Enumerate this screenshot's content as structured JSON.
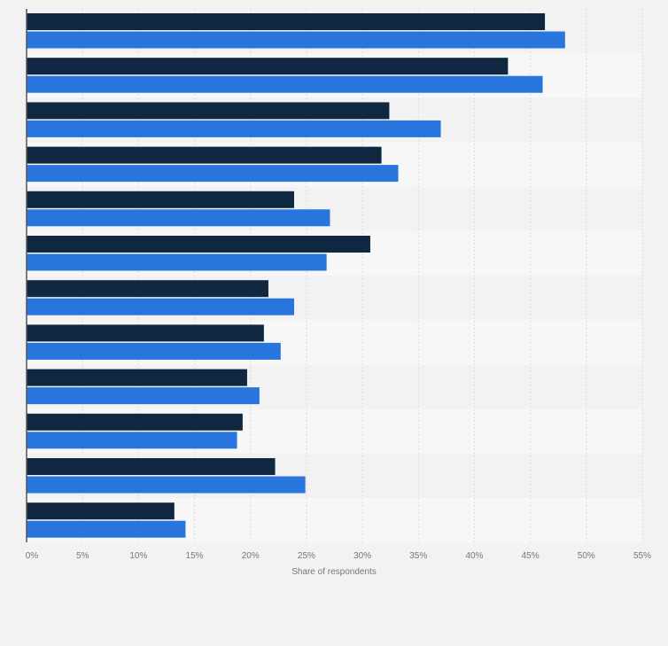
{
  "chart_data": {
    "type": "bar",
    "orientation": "horizontal",
    "categories": [
      "",
      "",
      "",
      "",
      "",
      "",
      "",
      "",
      "",
      "",
      "",
      ""
    ],
    "series": [
      {
        "color": "#0f2740",
        "values": [
          46.3,
          43.0,
          32.4,
          31.7,
          23.9,
          30.7,
          21.6,
          21.2,
          19.7,
          19.3,
          22.2,
          13.2
        ]
      },
      {
        "color": "#2876dd",
        "values": [
          48.1,
          46.1,
          37.0,
          33.2,
          27.1,
          26.8,
          23.9,
          22.7,
          20.8,
          18.8,
          24.9,
          14.2
        ]
      }
    ],
    "xlabel": "Share of respondents",
    "xlim": [
      0,
      55
    ],
    "xticks": [
      "0%",
      "5%",
      "10%",
      "15%",
      "20%",
      "25%",
      "30%",
      "35%",
      "40%",
      "45%",
      "50%",
      "55%"
    ],
    "grid": true,
    "legend": "none"
  }
}
